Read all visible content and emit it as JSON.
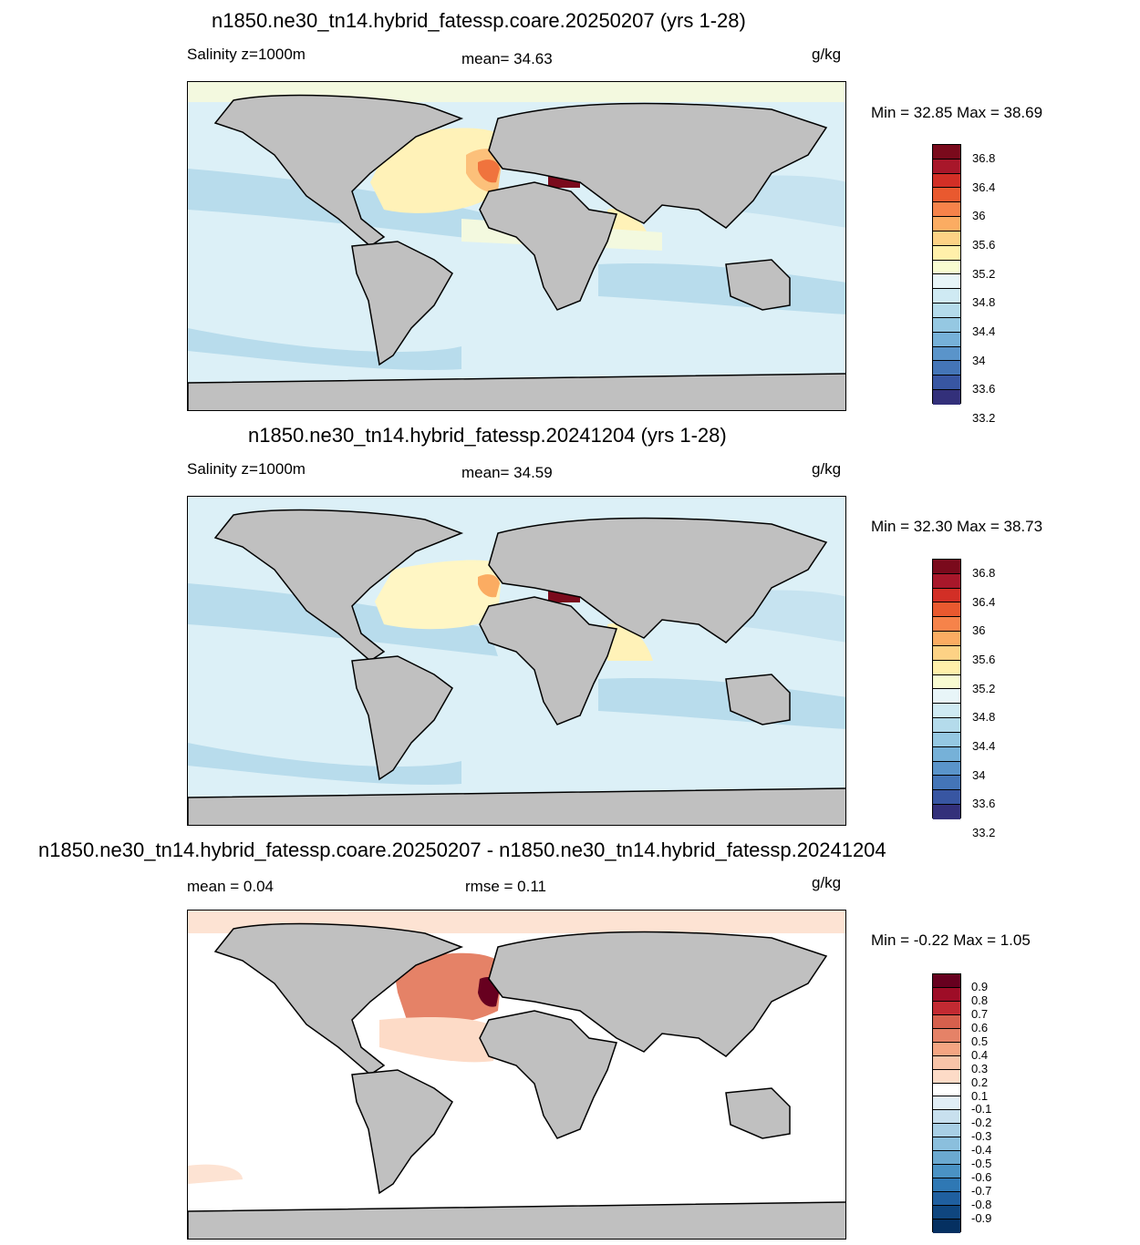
{
  "panels": [
    {
      "title": "n1850.ne30_tn14.hybrid_fatessp.coare.20250207 (yrs 1-28)",
      "left_label": "Salinity z=1000m",
      "center_label": "mean=  34.63",
      "units": "g/kg",
      "minmax": "Min =  32.85 Max =  38.69",
      "colorbar": {
        "colors": [
          "#7a0a1c",
          "#a8172a",
          "#d22f26",
          "#e9592f",
          "#f6834a",
          "#fbac62",
          "#fdd285",
          "#fff0aa",
          "#f8fbd1",
          "#e8f5f8",
          "#cfeaf3",
          "#b4dbeb",
          "#95c8e2",
          "#76b1d8",
          "#5a94ca",
          "#4475b7",
          "#3856a2",
          "#33307a"
        ],
        "labels": [
          "36.8",
          "36.4",
          "36",
          "35.6",
          "35.2",
          "34.8",
          "34.4",
          "34",
          "33.6",
          "33.2"
        ]
      }
    },
    {
      "title": "n1850.ne30_tn14.hybrid_fatessp.20241204 (yrs 1-28)",
      "left_label": "Salinity z=1000m",
      "center_label": "mean=  34.59",
      "units": "g/kg",
      "minmax": "Min =  32.30 Max =  38.73",
      "colorbar": {
        "colors": [
          "#7a0a1c",
          "#a8172a",
          "#d22f26",
          "#e9592f",
          "#f6834a",
          "#fbac62",
          "#fdd285",
          "#fff0aa",
          "#f8fbd1",
          "#e8f5f8",
          "#cfeaf3",
          "#b4dbeb",
          "#95c8e2",
          "#76b1d8",
          "#5a94ca",
          "#4475b7",
          "#3856a2",
          "#33307a"
        ],
        "labels": [
          "36.8",
          "36.4",
          "36",
          "35.6",
          "35.2",
          "34.8",
          "34.4",
          "34",
          "33.6",
          "33.2"
        ]
      }
    },
    {
      "title": "n1850.ne30_tn14.hybrid_fatessp.coare.20250207 - n1850.ne30_tn14.hybrid_fatessp.20241204",
      "left_label": "mean =   0.04",
      "center_label": "rmse =   0.11",
      "units": "g/kg",
      "minmax": "Min =  -0.22 Max =   1.05",
      "colorbar": {
        "colors": [
          "#67001f",
          "#9e0d27",
          "#c22a32",
          "#d6604d",
          "#e58267",
          "#f4a582",
          "#f8c4a8",
          "#fddbc7",
          "#ffffff",
          "#e1eef6",
          "#c8e0ee",
          "#a8cfe5",
          "#8bbfdd",
          "#6ba9d0",
          "#4a92c4",
          "#2f78b4",
          "#1f5f9f",
          "#0f467f",
          "#053061"
        ],
        "labels": [
          "0.9",
          "0.8",
          "0.7",
          "0.6",
          "0.5",
          "0.4",
          "0.3",
          "0.2",
          "0.1",
          "-0.1",
          "-0.2",
          "-0.3",
          "-0.4",
          "-0.5",
          "-0.6",
          "-0.7",
          "-0.8",
          "-0.9"
        ]
      }
    }
  ]
}
